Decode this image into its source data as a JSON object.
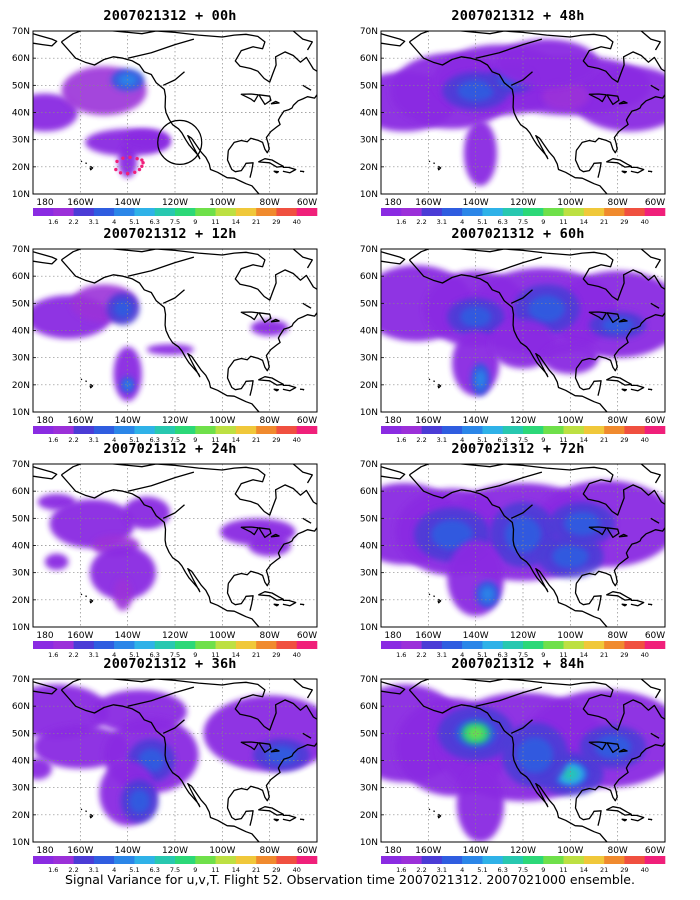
{
  "map": {
    "lat_labels": [
      "10N",
      "20N",
      "30N",
      "40N",
      "50N",
      "60N",
      "70N"
    ],
    "lon_labels": [
      "180",
      "160W",
      "140W",
      "120W",
      "100W",
      "80W",
      "60W"
    ]
  },
  "colorbar": {
    "labels": [
      "1.6",
      "2.2",
      "3.1",
      "4",
      "5.1",
      "6.3",
      "7.5",
      "9",
      "11",
      "14",
      "21",
      "29",
      "40"
    ],
    "colors": [
      "#8a2be2",
      "#9b30d9",
      "#4b3cd6",
      "#2f5de0",
      "#2b86e8",
      "#2fb2e8",
      "#28c8b0",
      "#2cd878",
      "#6fe04a",
      "#bde042",
      "#f0c83a",
      "#f08a2e",
      "#f05040",
      "#f0207a"
    ]
  },
  "panels": [
    {
      "title": "2007021312 + 00h"
    },
    {
      "title": "2007021312 + 48h"
    },
    {
      "title": "2007021312 + 12h"
    },
    {
      "title": "2007021312 + 60h"
    },
    {
      "title": "2007021312 + 24h"
    },
    {
      "title": "2007021312 + 72h"
    },
    {
      "title": "2007021312 + 36h"
    },
    {
      "title": "2007021312 + 84h"
    }
  ],
  "footer": "Signal Variance for u,v,T. Flight 52. Observation time 2007021312. 2007021000 ensemble."
}
